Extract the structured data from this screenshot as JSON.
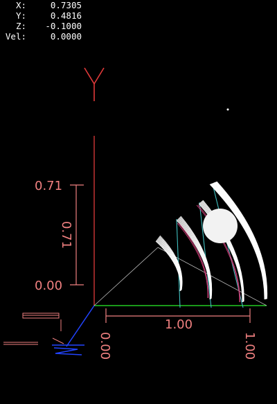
{
  "dro": [
    {
      "label": "X:",
      "value": "0.7305"
    },
    {
      "label": "Y:",
      "value": "0.4816"
    },
    {
      "label": "Z:",
      "value": "-0.1000"
    },
    {
      "label": "Vel:",
      "value": "0.0000"
    }
  ],
  "axes": {
    "y_axis_letter": "Y",
    "y_top_label": "0.71",
    "y_bottom_label": "0.00",
    "y_dimension_label": "0.71",
    "x_dimension_label": "1.00",
    "x_start_label": "0.00",
    "x_end_label": "1.00"
  },
  "colors": {
    "background": "#000000",
    "text": "#ffffff",
    "axis_red": "#e23a3a",
    "dim_salmon": "#f08080",
    "x_axis_green": "#22cc22",
    "z_axis_blue": "#2244ff",
    "feed_cyan": "#40c0c0",
    "toolpath": "#ffffff",
    "tool": "#f2f2f2"
  }
}
